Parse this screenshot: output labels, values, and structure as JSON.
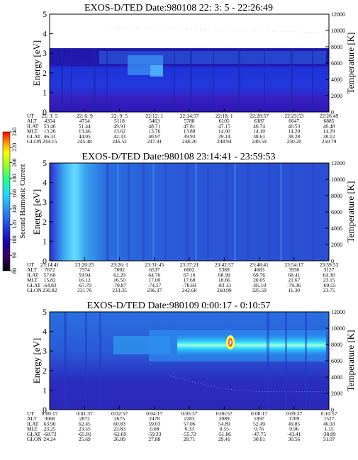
{
  "chart_data": [
    {
      "type": "heatmap",
      "title": "EXOS-D/TED   Date:980108  22: 3: 5 - 22:26:49",
      "ylabel": "Energy [eV]",
      "y2label": "Temperature [K]",
      "ylim": [
        0,
        5
      ],
      "y2lim": [
        0,
        12000
      ],
      "yticks": [
        "0",
        "1",
        "2",
        "3",
        "4",
        "5"
      ],
      "y2ticks": [
        "0",
        "2000",
        "4000",
        "6000",
        "8000",
        "10000",
        "12000"
      ],
      "row_labels": [
        "UT",
        "ALT",
        "ILAT",
        "MLT",
        "GLAT",
        "GLON"
      ],
      "columns": [
        [
          "22: 3: 5",
          "4354",
          "53.46",
          "13.26",
          "46.31",
          "244.15"
        ],
        [
          "22: 6: 9",
          "4754",
          "51.44",
          "13.46",
          "44.05",
          "245.48"
        ],
        [
          "22: 9: 5",
          "5118",
          "49.91",
          "13.62",
          "42.33",
          "246.52"
        ],
        [
          "22:12: 1",
          "5463",
          "48.71",
          "13.76",
          "40.97",
          "247.41"
        ],
        [
          "22:14:57",
          "5788",
          "47.81",
          "13.88",
          "39.93",
          "248.20"
        ],
        [
          "22:18: 1",
          "6105",
          "47.15",
          "14.00",
          "39.14",
          "248.94"
        ],
        [
          "22:20:57",
          "6387",
          "46.74",
          "14.10",
          "38.61",
          "249.59"
        ],
        [
          "22:23:53",
          "6647",
          "46.53",
          "14.20",
          "38.28",
          "250.20"
        ],
        [
          "22:26:49",
          "6885",
          "46.48",
          "14.29",
          "38.12",
          "250.79"
        ]
      ]
    },
    {
      "type": "heatmap",
      "title": "EXOS-D/TED   Date:980108  23:14:41 - 23:59:53",
      "ylabel": "Energy [eV]",
      "y2label": "Temperature [K]",
      "ylim": [
        0,
        5
      ],
      "y2lim": [
        0,
        12000
      ],
      "yticks": [
        "0",
        "1",
        "2",
        "3",
        "4",
        "5"
      ],
      "y2ticks": [
        "0",
        "2000",
        "4000",
        "6000",
        "8000",
        "10000",
        "12000"
      ],
      "row_labels": [
        "UT",
        "ALT",
        "ILAT",
        "MLT",
        "GLAT",
        "GLON"
      ],
      "columns": [
        [
          "23:14:41",
          "7672",
          "57.68",
          "15.82",
          "-64.83",
          "230.82"
        ],
        [
          "23:20:25",
          "7374",
          "59.94",
          "16.12",
          "-67.70",
          "231.76"
        ],
        [
          "23:26: 1",
          "7002",
          "62.29",
          "16.50",
          "-70.87",
          "233.35"
        ],
        [
          "23:31:45",
          "6537",
          "64.76",
          "17.00",
          "-74.57",
          "236.37"
        ],
        [
          "23:37:21",
          "6002",
          "67.10",
          "17.68",
          "-78.69",
          "242.68"
        ],
        [
          "23:42:57",
          "5389",
          "68.99",
          "18.66",
          "-83.13",
          "260.99"
        ],
        [
          "23:48:41",
          "4683",
          "69.76",
          "20.05",
          "-85.10",
          "325.59"
        ],
        [
          "23:54:17",
          "3930",
          "68.41",
          "21.67",
          "-79.36",
          "11.30"
        ],
        [
          "23:59:53",
          "3127",
          "64.30",
          "23.15",
          "-69.55",
          "23.75"
        ]
      ]
    },
    {
      "type": "heatmap",
      "title": "EXOS-D/TED   Date:980109   0:00:17 -  0:10:57",
      "ylabel": "Energy [eV]",
      "y2label": "Temperature [K]",
      "ylim": [
        0,
        5
      ],
      "y2lim": [
        0,
        12000
      ],
      "yticks": [
        "0",
        "1",
        "2",
        "3",
        "4",
        "5"
      ],
      "y2ticks": [
        "0",
        "2000",
        "4000",
        "6000",
        "8000",
        "10000",
        "12000"
      ],
      "row_labels": [
        "UT",
        "ALT",
        "ILAT",
        "MLT",
        "GLAT",
        "GLON"
      ],
      "columns": [
        [
          "0:00:17",
          "3068",
          "63.90",
          "23.25",
          "-68.72",
          "24.24"
        ],
        [
          "0:01:37",
          "2872",
          "62.45",
          "23.55",
          "-65.81",
          "25.69"
        ],
        [
          "0:02:57",
          "2675",
          "60.83",
          "23.83",
          "-62.69",
          "26.89"
        ],
        [
          "0:04:17",
          "2478",
          "59.03",
          "0.08",
          "-59.33",
          "27.88"
        ],
        [
          "0:05:37",
          "2283",
          "57.06",
          "0.33",
          "-55.72",
          "28.71"
        ],
        [
          "0:06:57",
          "2089",
          "54.89",
          "0.55",
          "-51.86",
          "29.41"
        ],
        [
          "0:08:17",
          "1897",
          "52.49",
          "0.76",
          "-47.75",
          "30.01"
        ],
        [
          "0:09:37",
          "1709",
          "49.85",
          "0.96",
          "-43.41",
          "30.56"
        ],
        [
          "0:10:57",
          "1527",
          "46.93",
          "1.15",
          "-38.89",
          "31.07"
        ]
      ]
    }
  ],
  "colorbar": {
    "label": "Second Harmonic Current",
    "ticks": [
      "80",
      "90",
      "100",
      "120",
      "140",
      "160",
      "180",
      "200",
      "220",
      "240"
    ],
    "colors": [
      "#000000",
      "#3a0060",
      "#1a00a8",
      "#2244e0",
      "#2f8ff0",
      "#23d8ff",
      "#20ff8a",
      "#9aff22",
      "#ffff00",
      "#ff8800",
      "#ff0000"
    ]
  }
}
